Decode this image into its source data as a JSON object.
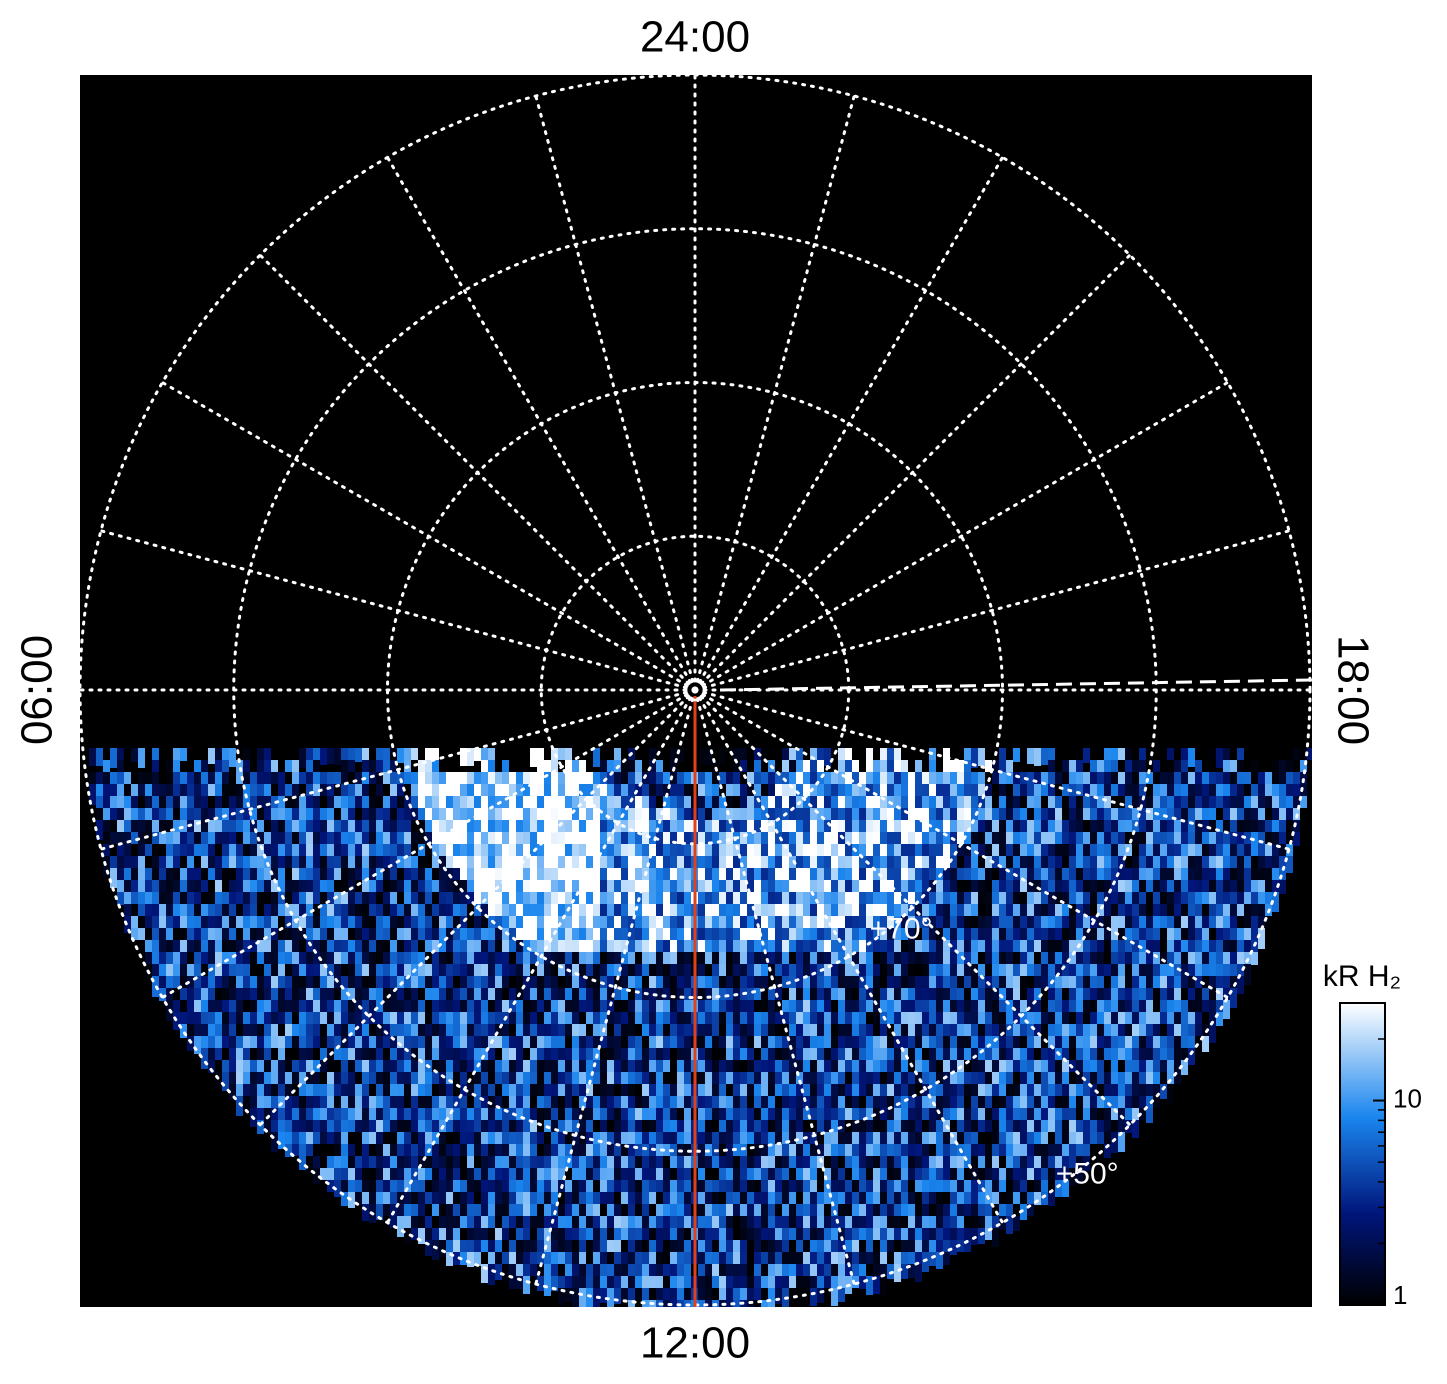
{
  "chart_data": {
    "type": "polar-image",
    "local_time_labels": {
      "top": "24:00",
      "bottom": "12:00",
      "left": "06:00",
      "right": "18:00"
    },
    "rlim": [
      90,
      50
    ],
    "latitude_rings": [
      80,
      70,
      60,
      50
    ],
    "latitude_labels": [
      {
        "value": 70,
        "label": "+70°"
      },
      {
        "value": 50,
        "label": "+50°"
      }
    ],
    "meridians": 24,
    "colorbar": {
      "title": "kR H₂",
      "log": true,
      "lim": [
        1,
        30
      ],
      "ticks": [
        1,
        10
      ]
    }
  }
}
